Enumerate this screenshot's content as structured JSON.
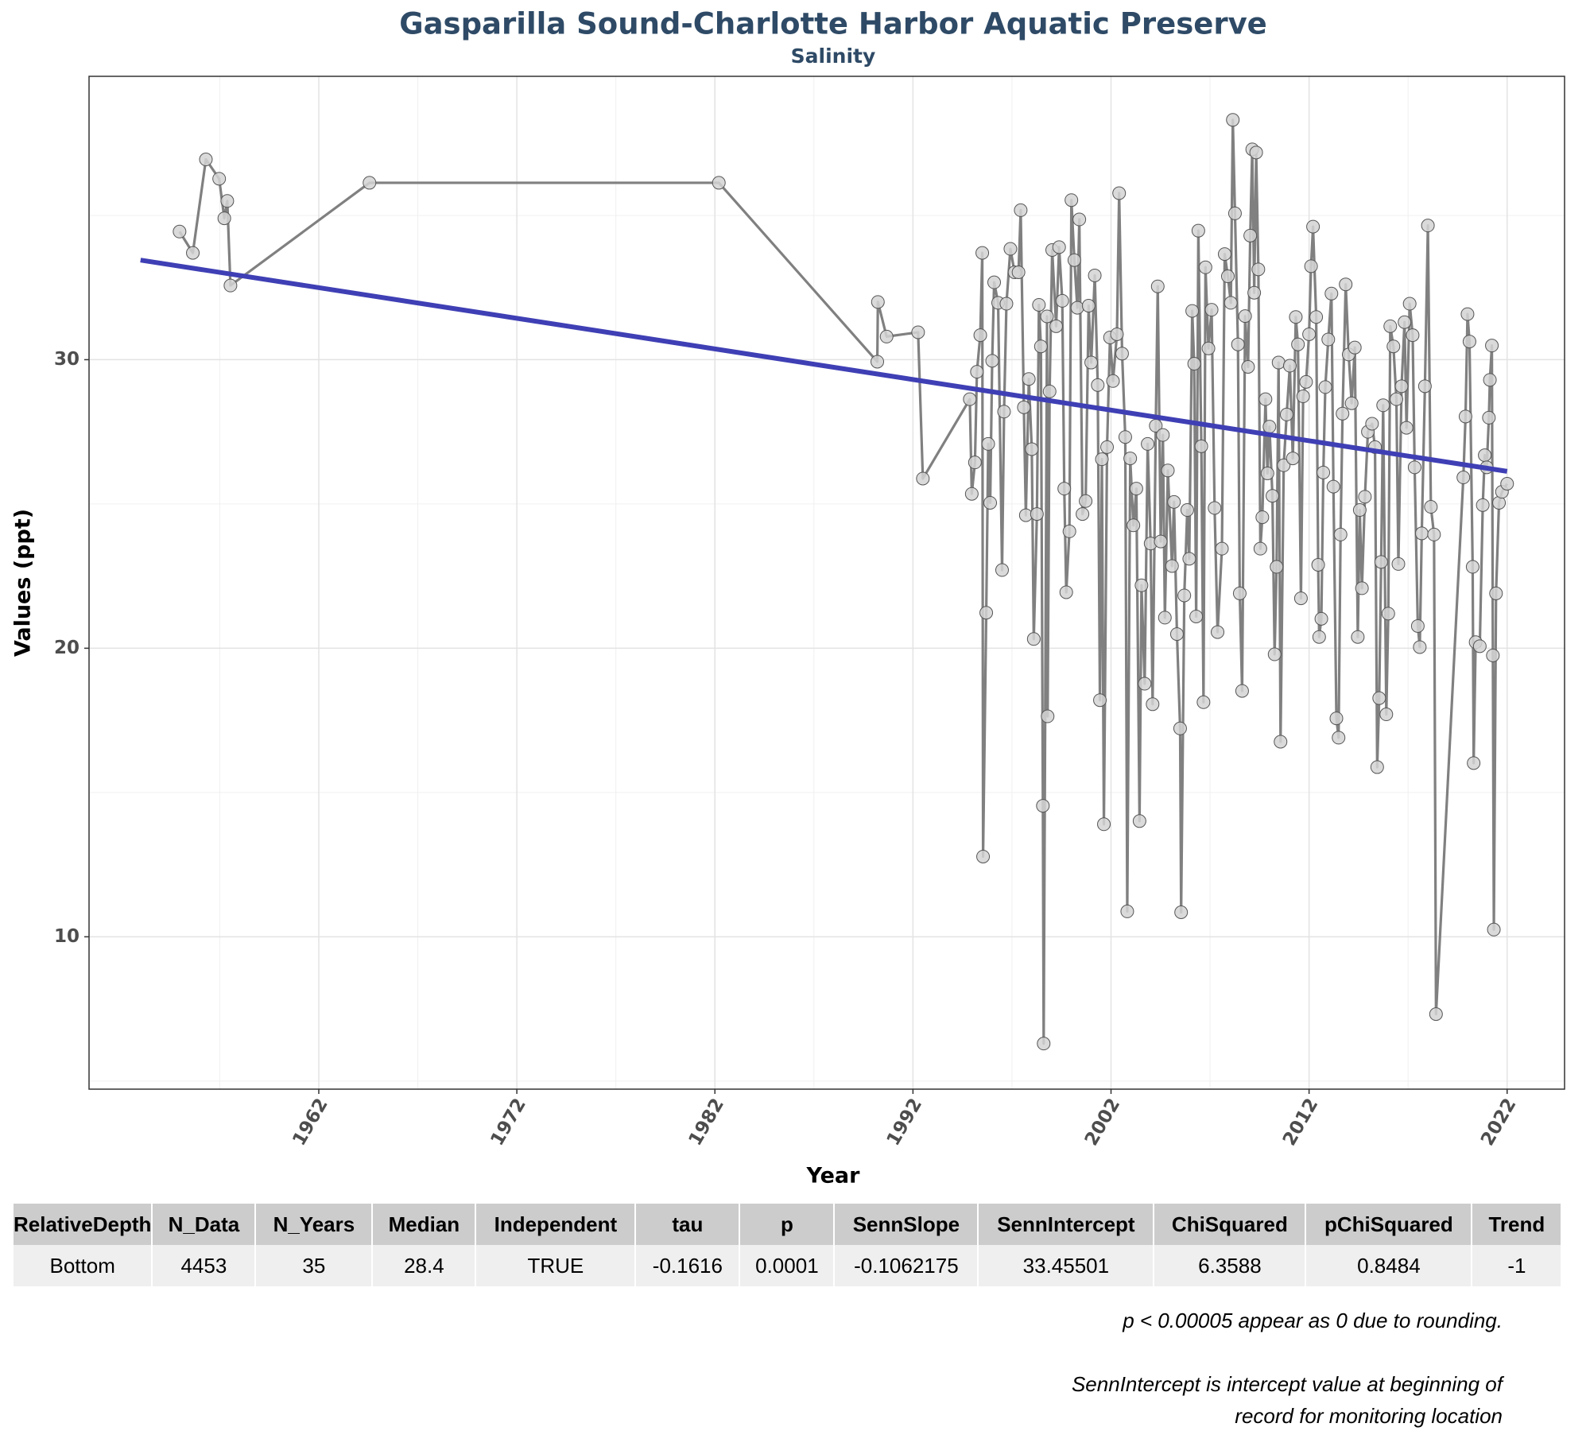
{
  "chart_data": {
    "type": "line",
    "title": "Gasparilla Sound-Charlotte Harbor Aquatic Preserve",
    "subtitle": "Salinity",
    "x_label": "Year",
    "y_label": "Values (ppt)",
    "xlim": [
      1950.4,
      2024.9
    ],
    "ylim": [
      4.72,
      39.82
    ],
    "xticks": [
      1962,
      1972,
      1982,
      1992,
      2002,
      2012,
      2022
    ],
    "yticks": [
      10,
      20,
      30
    ],
    "xminor": [
      1957,
      1967,
      1977,
      1987,
      1997,
      2007,
      2017
    ],
    "yminor": [
      5,
      15,
      25,
      35
    ],
    "grid": true,
    "color": "#808080",
    "marker_color": "#d3d3d3",
    "x": [
      1954.97,
      1955.64,
      1956.3,
      1956.97,
      1957.23,
      1957.38,
      1957.54,
      1964.56,
      1982.2,
      1990.2,
      1990.23,
      1990.67,
      1992.26,
      1992.5,
      1994.87,
      1994.97,
      1995.13,
      1995.23,
      1995.4,
      1995.5,
      1995.54,
      1995.7,
      1995.8,
      1995.9,
      1996.0,
      1996.1,
      1996.3,
      1996.5,
      1996.6,
      1996.72,
      1996.92,
      1997.13,
      1997.33,
      1997.44,
      1997.6,
      1997.7,
      1997.85,
      1998.0,
      1998.1,
      1998.26,
      1998.36,
      1998.46,
      1998.56,
      1998.6,
      1998.77,
      1998.8,
      1998.9,
      1999.03,
      1999.23,
      1999.38,
      1999.54,
      1999.64,
      1999.74,
      1999.9,
      2000.0,
      2000.15,
      2000.3,
      2000.4,
      2000.56,
      2000.72,
      2000.87,
      2001.0,
      2001.18,
      2001.33,
      2001.44,
      2001.54,
      2001.64,
      2001.8,
      2001.95,
      2002.1,
      2002.3,
      2002.41,
      2002.56,
      2002.72,
      2002.82,
      2002.97,
      2003.13,
      2003.28,
      2003.44,
      2003.54,
      2003.7,
      2003.85,
      2004.0,
      2004.1,
      2004.26,
      2004.36,
      2004.51,
      2004.62,
      2004.72,
      2004.87,
      2005.08,
      2005.18,
      2005.33,
      2005.49,
      2005.54,
      2005.7,
      2005.85,
      2005.95,
      2006.1,
      2006.2,
      2006.3,
      2006.41,
      2006.56,
      2006.67,
      2006.77,
      2006.92,
      2007.08,
      2007.23,
      2007.38,
      2007.6,
      2007.74,
      2007.9,
      2008.05,
      2008.15,
      2008.26,
      2008.41,
      2008.5,
      2008.62,
      2008.77,
      2008.92,
      2009.03,
      2009.13,
      2009.23,
      2009.33,
      2009.44,
      2009.54,
      2009.64,
      2009.8,
      2009.9,
      2010.0,
      2010.15,
      2010.26,
      2010.36,
      2010.46,
      2010.56,
      2010.72,
      2010.87,
      2011.03,
      2011.18,
      2011.33,
      2011.44,
      2011.59,
      2011.7,
      2011.85,
      2012.0,
      2012.1,
      2012.2,
      2012.36,
      2012.46,
      2012.51,
      2012.62,
      2012.72,
      2012.82,
      2012.97,
      2013.13,
      2013.23,
      2013.38,
      2013.49,
      2013.59,
      2013.69,
      2013.85,
      2014.0,
      2014.15,
      2014.31,
      2014.46,
      2014.56,
      2014.67,
      2014.82,
      2014.97,
      2015.18,
      2015.33,
      2015.44,
      2015.54,
      2015.64,
      2015.74,
      2015.9,
      2016.0,
      2016.1,
      2016.26,
      2016.41,
      2016.51,
      2016.67,
      2016.82,
      2016.92,
      2017.08,
      2017.23,
      2017.33,
      2017.49,
      2017.59,
      2017.69,
      2017.85,
      2018.0,
      2018.15,
      2018.31,
      2018.41,
      2019.79,
      2019.9,
      2020.0,
      2020.1,
      2020.26,
      2020.31,
      2020.41,
      2020.62,
      2020.77,
      2020.87,
      2020.97,
      2021.08,
      2021.13,
      2021.23,
      2021.28,
      2021.33,
      2021.44,
      2021.59,
      2021.74,
      2022.0
    ],
    "values": [
      34.44,
      33.7,
      36.94,
      36.27,
      34.9,
      35.5,
      32.57,
      36.13,
      36.13,
      29.93,
      32.0,
      30.8,
      30.95,
      25.88,
      28.63,
      25.35,
      26.44,
      29.58,
      30.85,
      33.7,
      12.78,
      21.23,
      27.08,
      25.04,
      29.96,
      32.68,
      31.97,
      22.71,
      28.2,
      31.94,
      33.84,
      33.03,
      33.03,
      35.18,
      28.35,
      24.61,
      29.33,
      26.9,
      20.32,
      24.65,
      31.9,
      30.46,
      14.54,
      6.3,
      31.5,
      17.64,
      28.9,
      33.8,
      31.16,
      33.9,
      32.04,
      25.53,
      21.94,
      24.05,
      35.53,
      33.45,
      31.8,
      34.86,
      24.65,
      25.1,
      31.87,
      29.9,
      32.92,
      29.12,
      18.2,
      26.55,
      13.9,
      26.97,
      30.77,
      29.26,
      30.88,
      35.77,
      30.21,
      27.32,
      10.88,
      26.58,
      24.26,
      25.53,
      14.01,
      22.18,
      18.77,
      27.08,
      23.63,
      18.06,
      27.71,
      32.54,
      23.7,
      27.39,
      21.06,
      26.16,
      22.85,
      25.07,
      20.49,
      17.22,
      10.85,
      21.83,
      24.79,
      23.1,
      31.69,
      29.86,
      21.1,
      34.47,
      27.0,
      18.13,
      33.2,
      30.39,
      31.73,
      24.86,
      20.56,
      23.45,
      33.66,
      32.89,
      31.97,
      38.31,
      35.07,
      30.53,
      21.9,
      18.52,
      31.51,
      29.75,
      34.3,
      37.29,
      32.32,
      37.18,
      33.13,
      23.45,
      24.54,
      28.63,
      26.06,
      27.68,
      25.28,
      19.79,
      22.82,
      29.9,
      16.76,
      26.34,
      28.1,
      29.79,
      26.58,
      31.48,
      30.53,
      21.73,
      28.73,
      29.23,
      30.88,
      33.24,
      34.61,
      31.48,
      22.89,
      20.39,
      21.02,
      26.09,
      29.05,
      30.7,
      32.29,
      25.6,
      17.57,
      16.9,
      23.94,
      28.13,
      32.61,
      30.18,
      28.49,
      30.42,
      20.39,
      24.79,
      22.08,
      25.25,
      27.5,
      27.78,
      26.97,
      15.88,
      18.27,
      22.99,
      28.42,
      17.71,
      21.2,
      31.16,
      30.46,
      28.63,
      22.92,
      29.08,
      31.3,
      27.64,
      31.94,
      30.85,
      26.27,
      20.77,
      20.04,
      23.98,
      29.08,
      34.65,
      24.9,
      23.94,
      7.32,
      25.92,
      28.03,
      31.58,
      30.63,
      22.82,
      16.02,
      20.21,
      20.07,
      24.96,
      26.69,
      26.27,
      27.99,
      29.3,
      30.49,
      19.75,
      10.25,
      21.9,
      25.04,
      25.42,
      25.7
    ],
    "trend": {
      "color": "#3f3fb5",
      "x": [
        1953.0,
        2022.0
      ],
      "values": [
        33.45,
        26.13
      ]
    }
  },
  "table": {
    "columns": [
      "RelativeDepth",
      "N_Data",
      "N_Years",
      "Median",
      "Independent",
      "tau",
      "p",
      "SennSlope",
      "SennIntercept",
      "ChiSquared",
      "pChiSquared",
      "Trend"
    ],
    "rows": [
      [
        "Bottom",
        "4453",
        "35",
        "28.4",
        "TRUE",
        "-0.1616",
        "0.0001",
        "-0.1062175",
        "33.45501",
        "6.3588",
        "0.8484",
        "-1"
      ]
    ]
  },
  "notes": [
    "p < 0.00005 appear as 0 due to rounding.",
    "SennIntercept is intercept value at beginning of",
    "record for monitoring location"
  ]
}
